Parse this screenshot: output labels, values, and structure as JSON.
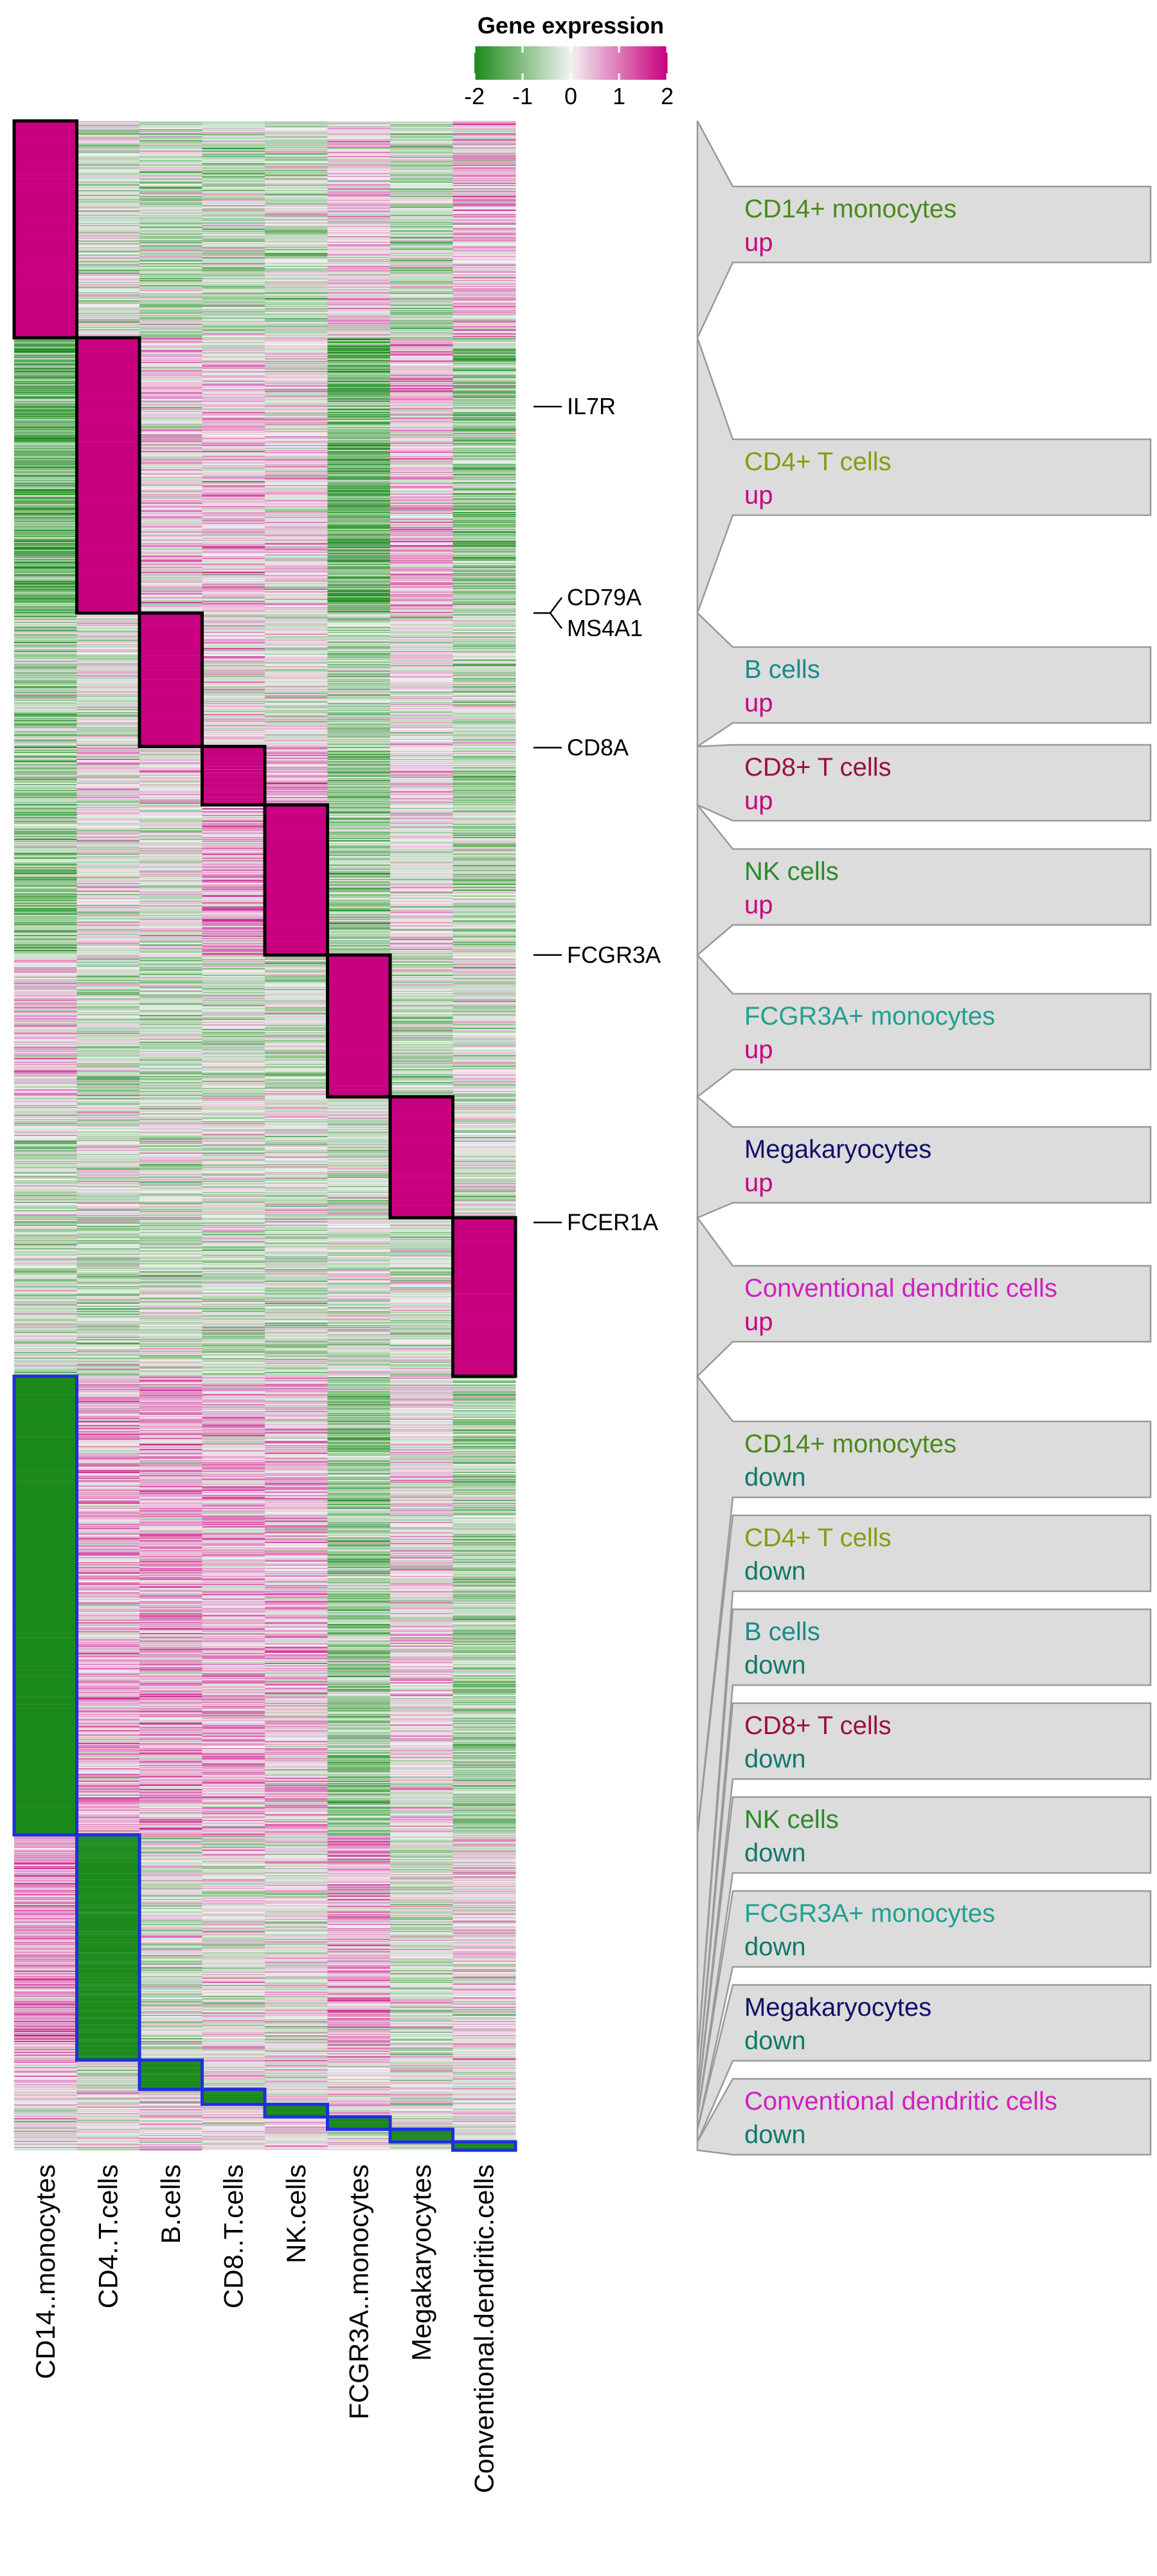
{
  "chart_data": {
    "type": "heatmap",
    "legend": {
      "title": "Gene expression",
      "ticks": [
        -2,
        -1,
        0,
        1,
        2
      ],
      "range": [
        -2,
        2
      ],
      "colors": {
        "low": "#1a8a1a",
        "mid": "#f2f2f2",
        "high": "#c8007f"
      }
    },
    "columns": [
      "CD14..monocytes",
      "CD4..T.cells",
      "B.cells",
      "CD8..T.cells",
      "NK.cells",
      "FCGR3A..monocytes",
      "Megakaryocytes",
      "Conventional.dendritic.cells"
    ],
    "row_groups": [
      {
        "label": "CD14+ monocytes",
        "direction": "up",
        "color": "#4a8a1a",
        "column": 0,
        "rows": 260
      },
      {
        "label": "CD4+ T cells",
        "direction": "up",
        "color": "#8a9a10",
        "column": 1,
        "rows": 330
      },
      {
        "label": "B cells",
        "direction": "up",
        "color": "#1a8a8a",
        "column": 2,
        "rows": 160
      },
      {
        "label": "CD8+ T cells",
        "direction": "up",
        "color": "#9a1040",
        "column": 3,
        "rows": 70
      },
      {
        "label": "NK cells",
        "direction": "up",
        "color": "#2a8a2a",
        "column": 4,
        "rows": 180
      },
      {
        "label": "FCGR3A+ monocytes",
        "direction": "up",
        "color": "#20a090",
        "column": 5,
        "rows": 170
      },
      {
        "label": "Megakaryocytes",
        "direction": "up",
        "color": "#10106a",
        "column": 6,
        "rows": 145
      },
      {
        "label": "Conventional dendritic cells",
        "direction": "up",
        "color": "#d020c0",
        "column": 7,
        "rows": 190
      },
      {
        "label": "CD14+ monocytes",
        "direction": "down",
        "color": "#4a8a1a",
        "column": 0,
        "rows": 550
      },
      {
        "label": "CD4+ T cells",
        "direction": "down",
        "color": "#8a9a10",
        "column": 1,
        "rows": 270
      },
      {
        "label": "B cells",
        "direction": "down",
        "color": "#1a8a8a",
        "column": 2,
        "rows": 35
      },
      {
        "label": "CD8+ T cells",
        "direction": "down",
        "color": "#9a1040",
        "column": 3,
        "rows": 18
      },
      {
        "label": "NK cells",
        "direction": "down",
        "color": "#2a8a2a",
        "column": 4,
        "rows": 15
      },
      {
        "label": "FCGR3A+ monocytes",
        "direction": "down",
        "color": "#20a090",
        "column": 5,
        "rows": 15
      },
      {
        "label": "Megakaryocytes",
        "direction": "down",
        "color": "#10106a",
        "column": 6,
        "rows": 15
      },
      {
        "label": "Conventional dendritic cells",
        "direction": "down",
        "color": "#d020c0",
        "column": 7,
        "rows": 10
      }
    ],
    "direction_colors": {
      "up": "#c8007f",
      "down": "#0f7a6a"
    },
    "box_colors": {
      "up": "#000000",
      "down": "#1f2fe0"
    },
    "column_bias": {
      "up": [
        [
          2.2,
          -0.3,
          -0.4,
          -0.4,
          -0.4,
          0.2,
          -0.5,
          0.4
        ],
        [
          -1.2,
          2.2,
          0.2,
          0.3,
          0.2,
          -1.2,
          0.4,
          -0.8
        ],
        [
          -0.6,
          -0.2,
          2.2,
          0.1,
          0.0,
          -0.5,
          0.0,
          -0.4
        ],
        [
          -0.8,
          0.2,
          0.1,
          2.0,
          0.6,
          -0.9,
          0.2,
          -0.6
        ],
        [
          -0.8,
          0.0,
          -0.1,
          0.6,
          2.2,
          -0.7,
          0.0,
          -0.5
        ],
        [
          0.3,
          -0.4,
          -0.4,
          -0.3,
          -0.3,
          2.2,
          -0.4,
          -0.2
        ],
        [
          -0.3,
          -0.2,
          -0.2,
          -0.2,
          -0.2,
          -0.2,
          2.2,
          -0.3
        ],
        [
          -0.3,
          -0.4,
          -0.3,
          -0.4,
          -0.4,
          -0.2,
          -0.3,
          2.2
        ]
      ],
      "down": [
        [
          -2.2,
          0.5,
          0.6,
          0.5,
          0.4,
          -0.8,
          0.2,
          -0.6
        ],
        [
          0.7,
          -2.0,
          -0.2,
          0.0,
          0.0,
          0.5,
          -0.3,
          0.2
        ],
        [
          0.2,
          -0.3,
          -2.0,
          0.1,
          0.1,
          0.2,
          0.0,
          0.1
        ],
        [
          0.2,
          0.1,
          0.0,
          -2.0,
          0.1,
          0.2,
          0.0,
          0.1
        ],
        [
          0.2,
          0.1,
          0.1,
          0.1,
          -2.0,
          0.2,
          0.0,
          0.1
        ],
        [
          0.1,
          0.1,
          0.1,
          0.1,
          0.1,
          -2.0,
          0.0,
          0.1
        ],
        [
          0.1,
          0.1,
          0.1,
          0.1,
          0.1,
          0.1,
          -2.0,
          0.1
        ],
        [
          0.1,
          0.1,
          0.1,
          0.1,
          0.1,
          0.1,
          0.0,
          -2.0
        ]
      ]
    },
    "gene_labels": [
      {
        "text": "IL7R",
        "group": 1,
        "frac": 0.25
      },
      {
        "text": "CD79A",
        "group": 2,
        "frac": 0.0,
        "bracket": true
      },
      {
        "text": "MS4A1",
        "group": 2,
        "frac": 0.0,
        "bracket": true
      },
      {
        "text": "CD8A",
        "group": 3,
        "frac": 0.02
      },
      {
        "text": "FCGR3A",
        "group": 5,
        "frac": 0.0
      },
      {
        "text": "FCER1A",
        "group": 7,
        "frac": 0.03
      }
    ]
  }
}
